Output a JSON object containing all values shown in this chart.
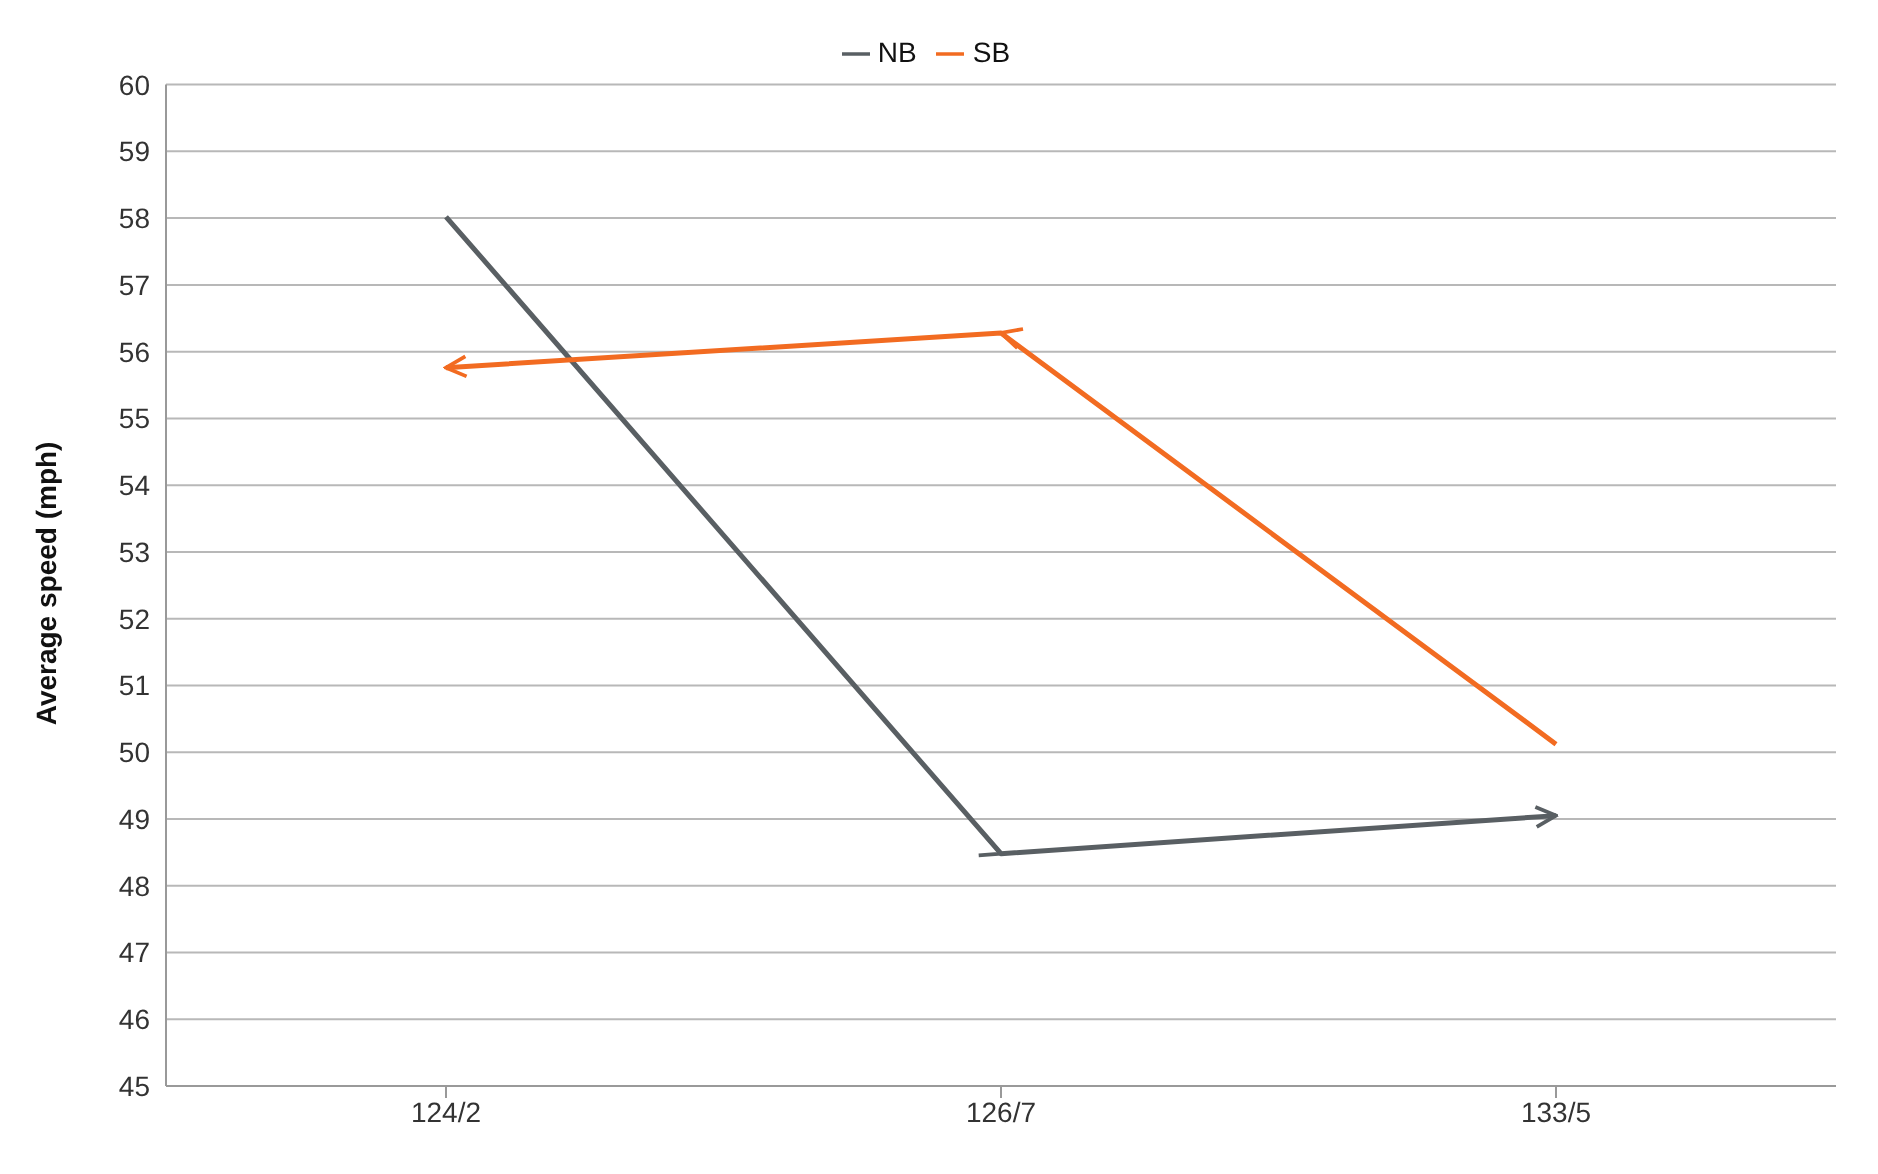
{
  "chart_data": {
    "type": "line",
    "ylabel": "Average speed (mph)",
    "categories": [
      "124/2",
      "126/7",
      "133/5"
    ],
    "series": [
      {
        "name": "NB",
        "color": "#595f63",
        "values": [
          58.02,
          48.48,
          49.05
        ]
      },
      {
        "name": "SB",
        "color": "#f26b21",
        "values": [
          55.76,
          56.28,
          50.12
        ]
      }
    ],
    "ylim": [
      45,
      60
    ],
    "yticks": [
      45,
      46,
      47,
      48,
      49,
      50,
      51,
      52,
      53,
      54,
      55,
      56,
      57,
      58,
      59,
      60
    ],
    "grid": "y",
    "legend": "top",
    "marker": "none",
    "line_style": "solid"
  }
}
